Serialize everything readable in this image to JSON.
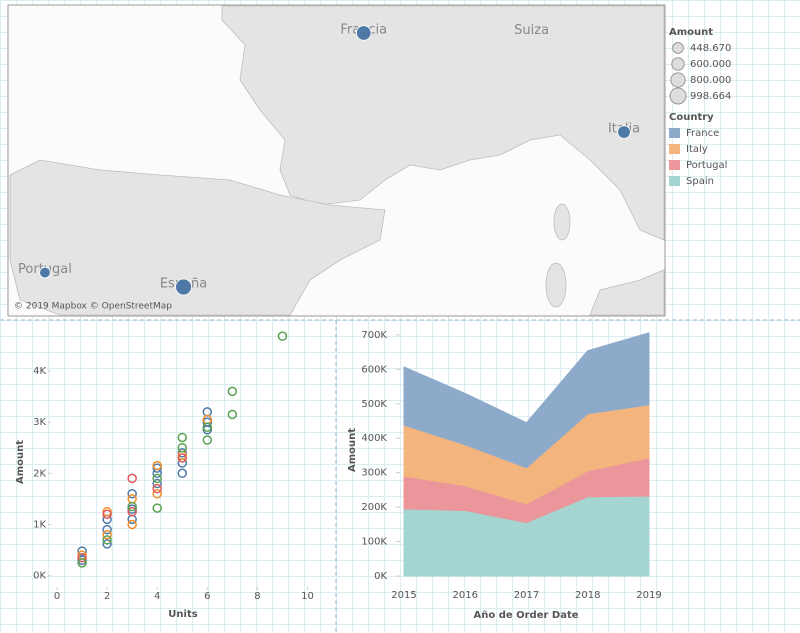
{
  "chart_data": [
    {
      "type": "map",
      "attribution": "© 2019 Mapbox © OpenStreetMap",
      "point_color": "#4e79a7",
      "points": [
        {
          "label": "Francia",
          "lon": 2.35,
          "lat": 48.85,
          "amount": 830000
        },
        {
          "label": "Italia",
          "lon": 10.8,
          "lat": 45.4,
          "amount": 630000
        },
        {
          "label": "Portugal",
          "lon": -8.0,
          "lat": 40.5,
          "amount": 448670
        },
        {
          "label": "España",
          "lon": -3.5,
          "lat": 40.0,
          "amount": 998664
        }
      ],
      "place_labels": [
        {
          "label": "Suiza",
          "lon": 7.8,
          "lat": 49.0
        }
      ],
      "size_legend": {
        "title": "Amount",
        "values": [
          {
            "value": 448670,
            "label": "448.670"
          },
          {
            "value": 600000,
            "label": "600.000"
          },
          {
            "value": 800000,
            "label": "800.000"
          },
          {
            "value": 998664,
            "label": "998.664"
          }
        ]
      }
    },
    {
      "type": "scatter",
      "x_label": "Units",
      "y_label": "Amount",
      "xlim": [
        -1,
        10.5
      ],
      "ylim": [
        -300,
        4800
      ],
      "xticks": [
        0,
        2,
        4,
        6,
        8,
        10
      ],
      "yticks": [
        {
          "value": 0,
          "label": "0K"
        },
        {
          "value": 1000,
          "label": "1K"
        },
        {
          "value": 2000,
          "label": "2K"
        },
        {
          "value": 3000,
          "label": "3K"
        },
        {
          "value": 4000,
          "label": "4K"
        }
      ],
      "series": [
        {
          "color": "#4e79a7",
          "x": [
            1,
            1,
            2,
            2,
            2,
            3,
            3,
            3,
            4,
            4,
            4,
            5,
            5,
            5,
            6,
            6,
            6
          ],
          "values": [
            480,
            300,
            900,
            1100,
            620,
            1300,
            1600,
            1100,
            1800,
            2000,
            2100,
            2200,
            2400,
            2000,
            3200,
            3000,
            2850
          ]
        },
        {
          "color": "#f28e2b",
          "x": [
            1,
            2,
            2,
            3,
            3,
            4,
            4,
            5,
            6
          ],
          "values": [
            400,
            1250,
            800,
            1500,
            1000,
            1600,
            2150,
            2350,
            3050
          ]
        },
        {
          "color": "#e15759",
          "x": [
            1,
            2,
            3,
            3,
            4,
            5
          ],
          "values": [
            350,
            1200,
            1900,
            1250,
            1700,
            2300
          ]
        },
        {
          "color": "#59a14f",
          "x": [
            1,
            2,
            3,
            4,
            4,
            5,
            5,
            6,
            6,
            7,
            7,
            9
          ],
          "values": [
            250,
            700,
            1350,
            1320,
            1900,
            2700,
            2500,
            2650,
            2900,
            3150,
            3600,
            4680
          ]
        }
      ]
    },
    {
      "type": "stacked_area",
      "x_label": "Año de Order Date",
      "y_label": "Amount",
      "legend_title": "Country",
      "x": [
        2015,
        2016,
        2017,
        2018,
        2019
      ],
      "xlim": [
        2015,
        2019
      ],
      "xticks": [
        2015,
        2016,
        2017,
        2018,
        2019
      ],
      "ylim": [
        0,
        720000
      ],
      "yticks": [
        {
          "value": 0,
          "label": "0K"
        },
        {
          "value": 100000,
          "label": "100K"
        },
        {
          "value": 200000,
          "label": "200K"
        },
        {
          "value": 300000,
          "label": "300K"
        },
        {
          "value": 400000,
          "label": "400K"
        },
        {
          "value": 500000,
          "label": "500K"
        },
        {
          "value": 600000,
          "label": "600K"
        },
        {
          "value": 700000,
          "label": "700K"
        }
      ],
      "series": [
        {
          "name": "France",
          "color": "#8eaacb",
          "values": [
            169000,
            149000,
            131000,
            183000,
            209000
          ]
        },
        {
          "name": "Italy",
          "color": "#f3b47e",
          "values": [
            148000,
            119000,
            105000,
            166000,
            154000
          ]
        },
        {
          "name": "Portugal",
          "color": "#ea969b",
          "values": [
            95000,
            72000,
            54000,
            75000,
            111000
          ]
        },
        {
          "name": "Spain",
          "color": "#a5d5d0",
          "values": [
            195000,
            190000,
            155000,
            230000,
            232000
          ]
        }
      ]
    }
  ]
}
